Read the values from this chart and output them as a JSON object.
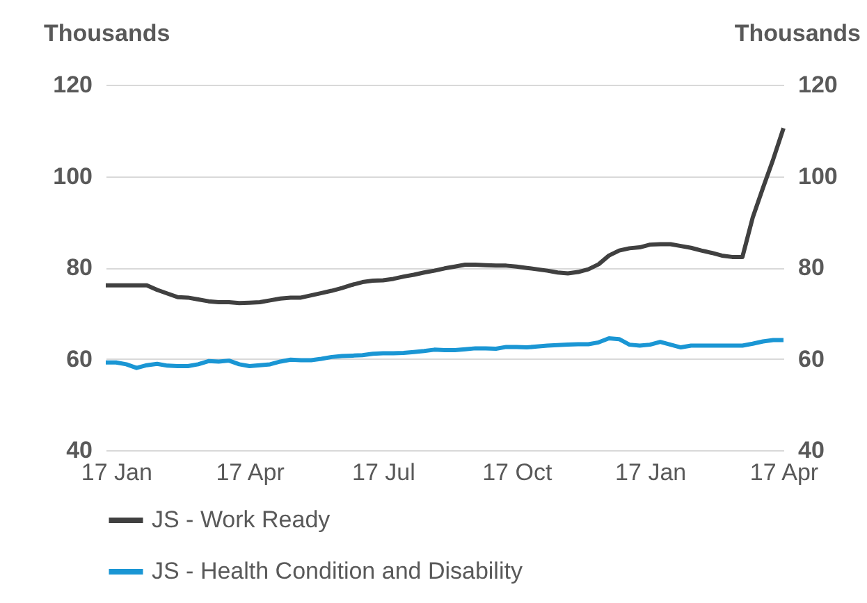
{
  "chart_data": {
    "type": "line",
    "ylabel": "Thousands",
    "y2label": "Thousands",
    "categories": [
      null,
      "17 Jan",
      null,
      null,
      null,
      null,
      null,
      null,
      null,
      null,
      null,
      null,
      null,
      null,
      "17 Apr",
      null,
      null,
      null,
      null,
      null,
      null,
      null,
      null,
      null,
      null,
      null,
      null,
      "17 Jul",
      null,
      null,
      null,
      null,
      null,
      null,
      null,
      null,
      null,
      null,
      null,
      null,
      "17 Oct",
      null,
      null,
      null,
      null,
      null,
      null,
      null,
      null,
      null,
      null,
      null,
      null,
      "17 Jan",
      null,
      null,
      null,
      null,
      null,
      null,
      null,
      null,
      null,
      null,
      null,
      null,
      "17 Apr"
    ],
    "series": [
      {
        "name": "JS - Work Ready",
        "color": "#404040",
        "values": [
          76.1,
          76.1,
          76.1,
          76.1,
          76.1,
          75.1,
          74.3,
          73.5,
          73.4,
          73.0,
          72.6,
          72.4,
          72.4,
          72.2,
          72.3,
          72.4,
          72.8,
          73.2,
          73.4,
          73.4,
          73.9,
          74.4,
          74.9,
          75.5,
          76.2,
          76.8,
          77.1,
          77.2,
          77.5,
          78.0,
          78.4,
          78.9,
          79.3,
          79.8,
          80.2,
          80.6,
          80.6,
          80.5,
          80.4,
          80.4,
          80.2,
          79.9,
          79.6,
          79.3,
          78.9,
          78.7,
          79.0,
          79.6,
          80.7,
          82.6,
          83.7,
          84.2,
          84.4,
          85.0,
          85.1,
          85.1,
          84.7,
          84.3,
          83.7,
          83.2,
          82.6,
          82.3,
          82.3,
          90.9,
          97.4,
          103.7,
          110.5
        ]
      },
      {
        "name": "JS - Health Condition and Disability",
        "color": "#1a96d4",
        "values": [
          59.2,
          59.2,
          58.8,
          58.0,
          58.6,
          58.9,
          58.5,
          58.4,
          58.4,
          58.8,
          59.5,
          59.4,
          59.6,
          58.8,
          58.4,
          58.6,
          58.8,
          59.4,
          59.8,
          59.7,
          59.7,
          60.0,
          60.4,
          60.6,
          60.7,
          60.8,
          61.1,
          61.2,
          61.2,
          61.3,
          61.5,
          61.7,
          62.0,
          61.9,
          61.9,
          62.1,
          62.3,
          62.3,
          62.2,
          62.6,
          62.6,
          62.5,
          62.7,
          62.9,
          63.0,
          63.1,
          63.2,
          63.2,
          63.6,
          64.5,
          64.3,
          63.1,
          62.9,
          63.1,
          63.7,
          63.1,
          62.5,
          62.9,
          62.9,
          62.9,
          62.9,
          62.9,
          62.9,
          63.3,
          63.8,
          64.1,
          64.1
        ]
      }
    ],
    "ylim": [
      40,
      120
    ],
    "yticks": [
      40,
      60,
      80,
      100,
      120
    ],
    "y2lim": [
      40,
      120
    ],
    "y2ticks": [
      40,
      60,
      80,
      100,
      120
    ],
    "grid": "y",
    "legend": "bottom",
    "line_style": "solid",
    "marker": "none"
  }
}
